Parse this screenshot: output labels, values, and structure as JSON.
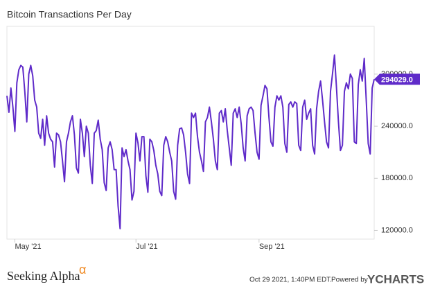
{
  "chart_data": {
    "type": "line",
    "title": "Bitcoin Transactions Per Day",
    "x": [
      0,
      1,
      2,
      3,
      4,
      5,
      6,
      7,
      8,
      9,
      10,
      11,
      12,
      13,
      14,
      15,
      16,
      17,
      18,
      19,
      20,
      21,
      22,
      23,
      24,
      25,
      26,
      27,
      28,
      29,
      30,
      31,
      32,
      33,
      34,
      35,
      36,
      37,
      38,
      39,
      40,
      41,
      42,
      43,
      44,
      45,
      46,
      47,
      48,
      49,
      50,
      51,
      52,
      53,
      54,
      55,
      56,
      57,
      58,
      59,
      60,
      61,
      62,
      63,
      64,
      65,
      66,
      67,
      68,
      69,
      70,
      71,
      72,
      73,
      74,
      75,
      76,
      77,
      78,
      79,
      80,
      81,
      82,
      83,
      84,
      85,
      86,
      87,
      88,
      89,
      90,
      91,
      92,
      93,
      94,
      95,
      96,
      97,
      98,
      99,
      100,
      101,
      102,
      103,
      104,
      105,
      106,
      107,
      108,
      109,
      110,
      111,
      112,
      113,
      114,
      115,
      116,
      117,
      118,
      119,
      120,
      121,
      122,
      123,
      124,
      125,
      126,
      127,
      128,
      129,
      130,
      131,
      132,
      133,
      134,
      135,
      136,
      137,
      138,
      139,
      140,
      141,
      142,
      143,
      144,
      145,
      146,
      147,
      148,
      149,
      150,
      151,
      152,
      153,
      154,
      155,
      156,
      157,
      158,
      159,
      160,
      161,
      162,
      163,
      164,
      165,
      166,
      167,
      168,
      169,
      170,
      171,
      172,
      173,
      174,
      175,
      176,
      177,
      178,
      179,
      180,
      181,
      182,
      183,
      184,
      185
    ],
    "series": [
      {
        "name": "Bitcoin Transactions Per Day",
        "color": "#5f2bc9",
        "values": [
          275000,
          256000,
          284000,
          262000,
          234000,
          290000,
          305000,
          310000,
          308000,
          280000,
          245000,
          300000,
          310000,
          298000,
          270000,
          262000,
          232000,
          226000,
          248000,
          218000,
          252000,
          232000,
          225000,
          222000,
          193000,
          232000,
          230000,
          222000,
          200000,
          176000,
          222000,
          232000,
          245000,
          252000,
          230000,
          192000,
          186000,
          248000,
          232000,
          205000,
          240000,
          232000,
          195000,
          174000,
          232000,
          235000,
          247000,
          225000,
          213000,
          175000,
          166000,
          215000,
          222000,
          213000,
          190000,
          190000,
          148000,
          122000,
          215000,
          205000,
          213000,
          200000,
          190000,
          155000,
          165000,
          232000,
          221000,
          200000,
          228000,
          228000,
          183000,
          164000,
          225000,
          222000,
          212000,
          195000,
          185000,
          165000,
          160000,
          218000,
          228000,
          222000,
          210000,
          200000,
          165000,
          156000,
          218000,
          237000,
          238000,
          230000,
          210000,
          185000,
          174000,
          255000,
          250000,
          255000,
          228000,
          210000,
          200000,
          188000,
          245000,
          250000,
          262000,
          245000,
          225000,
          200000,
          190000,
          255000,
          258000,
          245000,
          260000,
          235000,
          215000,
          195000,
          255000,
          260000,
          250000,
          262000,
          243000,
          215000,
          200000,
          252000,
          260000,
          262000,
          258000,
          232000,
          210000,
          202000,
          264000,
          275000,
          287000,
          283000,
          250000,
          222000,
          217000,
          262000,
          275000,
          270000,
          275000,
          262000,
          220000,
          210000,
          265000,
          268000,
          262000,
          268000,
          266000,
          218000,
          212000,
          262000,
          270000,
          248000,
          255000,
          260000,
          218000,
          208000,
          260000,
          280000,
          292000,
          270000,
          245000,
          222000,
          215000,
          280000,
          300000,
          322000,
          285000,
          245000,
          212000,
          218000,
          280000,
          290000,
          283000,
          300000,
          295000,
          222000,
          220000,
          288000,
          305000,
          292000,
          318000,
          270000,
          220000,
          208000,
          284000,
          294029
        ]
      }
    ],
    "xlim": [
      0,
      185
    ],
    "xticks": [
      {
        "value": 4,
        "label": "May '21"
      },
      {
        "value": 65,
        "label": "Jul '21"
      },
      {
        "value": 127,
        "label": "Sep '21"
      }
    ],
    "ylim": [
      110000,
      355000
    ],
    "yticks": [
      {
        "value": 120000,
        "label": "120000.0"
      },
      {
        "value": 180000,
        "label": "180000.0"
      },
      {
        "value": 240000,
        "label": "240000.0"
      },
      {
        "value": 300000,
        "label": "300000.0"
      }
    ],
    "grid": false,
    "annotations": [
      {
        "x": 185,
        "y": 294029,
        "label": "294029.0"
      }
    ]
  },
  "footer": {
    "brand": "Seeking Alpha",
    "brand_symbol": "α",
    "timestamp": "Oct 29 2021, 1:40PM EDT.",
    "powered": "Powered by",
    "provider": "YCHARTS"
  }
}
